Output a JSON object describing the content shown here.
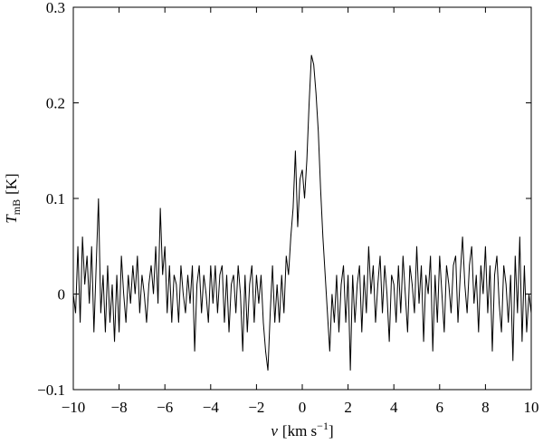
{
  "chart_data": {
    "type": "line",
    "step": true,
    "xlabel": {
      "symbol": "v",
      "unit": "[km s",
      "exponent": "−1",
      "close": "]"
    },
    "ylabel": {
      "symbol": "T",
      "subscript": "mB",
      "unit": "[K]"
    },
    "xlim": [
      -10,
      10
    ],
    "ylim": [
      -0.1,
      0.3
    ],
    "xticks": [
      {
        "value": -10,
        "label": "−10"
      },
      {
        "value": -8,
        "label": "−8"
      },
      {
        "value": -6,
        "label": "−6"
      },
      {
        "value": -4,
        "label": "−4"
      },
      {
        "value": -2,
        "label": "−2"
      },
      0,
      2,
      4,
      6,
      8,
      10
    ],
    "yticks": [
      {
        "value": -0.1,
        "label": "−0.1"
      },
      0,
      0.1,
      0.2,
      0.3
    ],
    "series": [
      {
        "color": "#000000",
        "x": [
          -10,
          -9.9,
          -9.8,
          -9.7,
          -9.6,
          -9.5,
          -9.4,
          -9.3,
          -9.2,
          -9.1,
          -9,
          -8.9,
          -8.8,
          -8.7,
          -8.6,
          -8.5,
          -8.4,
          -8.3,
          -8.2,
          -8.1,
          -8,
          -7.9,
          -7.8,
          -7.7,
          -7.6,
          -7.5,
          -7.4,
          -7.3,
          -7.2,
          -7.1,
          -7,
          -6.9,
          -6.8,
          -6.7,
          -6.6,
          -6.5,
          -6.4,
          -6.3,
          -6.2,
          -6.1,
          -6,
          -5.9,
          -5.8,
          -5.7,
          -5.6,
          -5.5,
          -5.4,
          -5.3,
          -5.2,
          -5.1,
          -5,
          -4.9,
          -4.8,
          -4.7,
          -4.6,
          -4.5,
          -4.4,
          -4.3,
          -4.2,
          -4.1,
          -4,
          -3.9,
          -3.8,
          -3.7,
          -3.6,
          -3.5,
          -3.4,
          -3.3,
          -3.2,
          -3.1,
          -3,
          -2.9,
          -2.8,
          -2.7,
          -2.6,
          -2.5,
          -2.4,
          -2.3,
          -2.2,
          -2.1,
          -2,
          -1.9,
          -1.8,
          -1.7,
          -1.6,
          -1.5,
          -1.4,
          -1.3,
          -1.2,
          -1.1,
          -1,
          -0.9,
          -0.8,
          -0.7,
          -0.6,
          -0.5,
          -0.4,
          -0.3,
          -0.2,
          -0.1,
          0,
          0.1,
          0.2,
          0.3,
          0.4,
          0.5,
          0.6,
          0.7,
          0.8,
          0.9,
          1,
          1.1,
          1.2,
          1.3,
          1.4,
          1.5,
          1.6,
          1.7,
          1.8,
          1.9,
          2,
          2.1,
          2.2,
          2.3,
          2.4,
          2.5,
          2.6,
          2.7,
          2.8,
          2.9,
          3,
          3.1,
          3.2,
          3.3,
          3.4,
          3.5,
          3.6,
          3.7,
          3.8,
          3.9,
          4,
          4.1,
          4.2,
          4.3,
          4.4,
          4.5,
          4.6,
          4.7,
          4.8,
          4.9,
          5,
          5.1,
          5.2,
          5.3,
          5.4,
          5.5,
          5.6,
          5.7,
          5.8,
          5.9,
          6,
          6.1,
          6.2,
          6.3,
          6.4,
          6.5,
          6.6,
          6.7,
          6.8,
          6.9,
          7,
          7.1,
          7.2,
          7.3,
          7.4,
          7.5,
          7.6,
          7.7,
          7.8,
          7.9,
          8,
          8.1,
          8.2,
          8.3,
          8.4,
          8.5,
          8.6,
          8.7,
          8.8,
          8.9,
          9,
          9.1,
          9.2,
          9.3,
          9.4,
          9.5,
          9.6,
          9.7,
          9.8,
          9.9,
          10
        ],
        "values": [
          0.0,
          -0.02,
          0.05,
          -0.03,
          0.06,
          0.01,
          0.04,
          -0.01,
          0.05,
          -0.04,
          0.03,
          0.1,
          -0.02,
          0.02,
          -0.04,
          0.03,
          -0.03,
          0.01,
          -0.05,
          0.02,
          -0.04,
          0.04,
          0.0,
          -0.03,
          0.02,
          -0.01,
          0.03,
          0.0,
          0.04,
          -0.02,
          0.02,
          0.0,
          -0.03,
          0.01,
          0.03,
          0.0,
          0.05,
          -0.01,
          0.09,
          0.02,
          0.05,
          -0.02,
          0.03,
          -0.03,
          0.02,
          0.01,
          -0.03,
          0.03,
          0.0,
          -0.02,
          0.02,
          -0.01,
          0.03,
          -0.06,
          0.01,
          0.03,
          -0.02,
          0.02,
          0.0,
          -0.03,
          0.03,
          -0.01,
          0.03,
          -0.02,
          0.02,
          0.03,
          -0.03,
          0.02,
          -0.04,
          0.01,
          0.02,
          -0.02,
          0.03,
          0.0,
          -0.06,
          0.02,
          -0.04,
          0.01,
          0.03,
          -0.03,
          0.02,
          -0.01,
          0.02,
          -0.03,
          -0.06,
          -0.08,
          -0.02,
          0.03,
          -0.03,
          0.01,
          -0.03,
          0.02,
          -0.02,
          0.04,
          0.02,
          0.06,
          0.09,
          0.15,
          0.07,
          0.12,
          0.13,
          0.1,
          0.14,
          0.2,
          0.25,
          0.24,
          0.21,
          0.17,
          0.11,
          0.06,
          0.02,
          -0.02,
          -0.06,
          0.0,
          -0.03,
          0.02,
          -0.04,
          0.01,
          0.03,
          -0.03,
          0.02,
          -0.08,
          0.02,
          -0.03,
          0.01,
          0.03,
          -0.04,
          0.02,
          -0.02,
          0.05,
          0.0,
          0.03,
          -0.03,
          0.01,
          0.04,
          -0.02,
          0.03,
          0.0,
          -0.05,
          0.02,
          0.01,
          -0.03,
          0.03,
          -0.02,
          0.04,
          0.0,
          -0.04,
          0.03,
          0.01,
          -0.02,
          0.05,
          -0.01,
          0.03,
          -0.05,
          0.02,
          0.0,
          0.04,
          -0.06,
          0.02,
          -0.03,
          0.04,
          0.0,
          -0.04,
          0.03,
          0.01,
          -0.02,
          0.03,
          0.04,
          -0.03,
          0.02,
          0.06,
          0.01,
          -0.02,
          0.03,
          0.05,
          -0.01,
          0.02,
          -0.04,
          0.03,
          0.0,
          0.05,
          -0.02,
          0.03,
          -0.06,
          0.02,
          0.04,
          -0.01,
          -0.04,
          0.03,
          0.01,
          -0.03,
          0.02,
          -0.07,
          0.04,
          -0.02,
          0.06,
          -0.05,
          0.03,
          -0.04,
          0.0,
          -0.02
        ]
      }
    ]
  }
}
